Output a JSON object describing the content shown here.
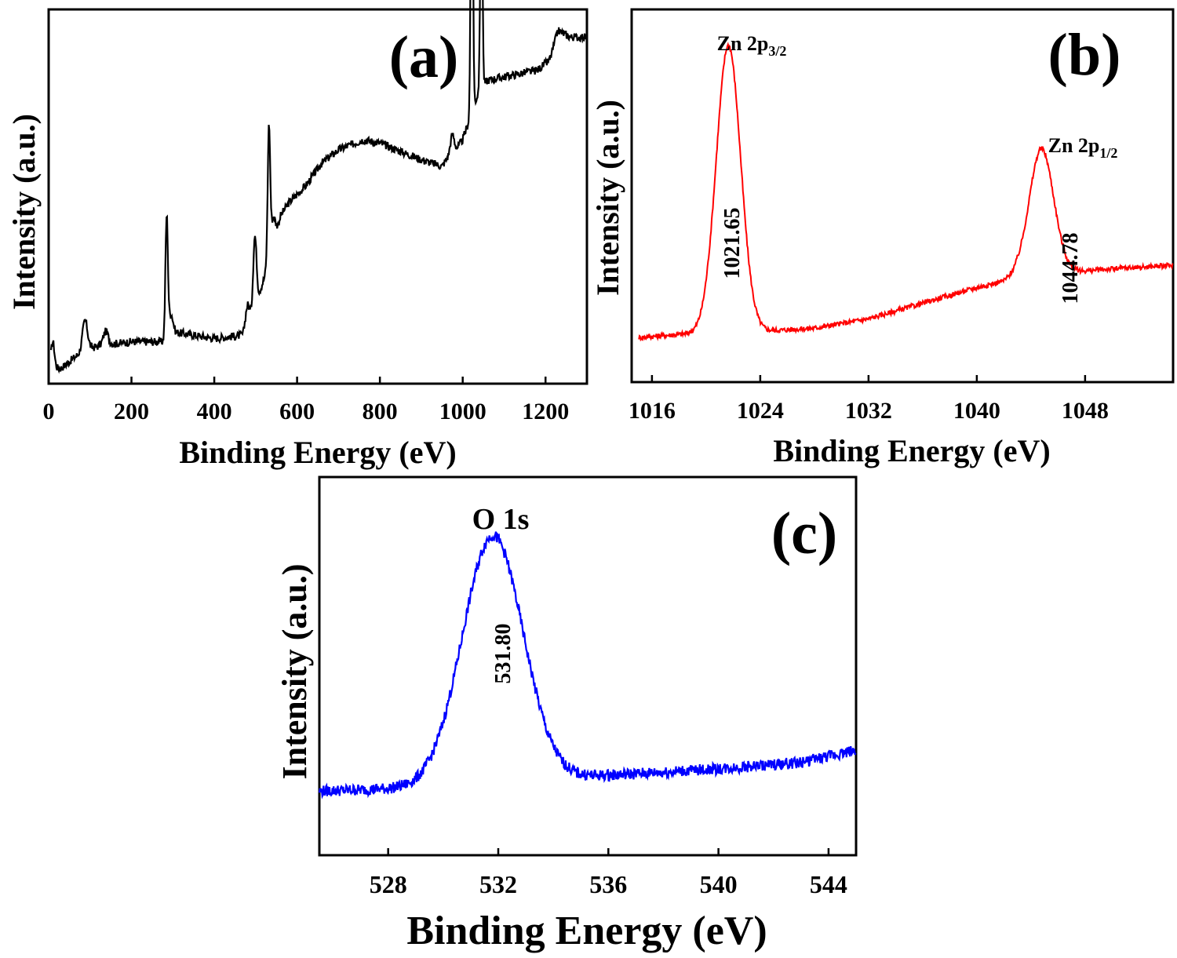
{
  "chart_data": [
    {
      "id": "a",
      "type": "line",
      "panel_label": "(a)",
      "xlabel": "Binding Energy (eV)",
      "ylabel": "Intensity (a.u.)",
      "xlim": [
        0,
        1300
      ],
      "ylim": [
        0,
        100
      ],
      "xticks": [
        0,
        200,
        400,
        600,
        800,
        1000,
        1200
      ],
      "color": "#000000",
      "baseline_points": [
        [
          5,
          3
        ],
        [
          30,
          3
        ],
        [
          60,
          6
        ],
        [
          80,
          8
        ],
        [
          100,
          9
        ],
        [
          130,
          10
        ],
        [
          200,
          11
        ],
        [
          280,
          11
        ],
        [
          300,
          14
        ],
        [
          400,
          12
        ],
        [
          470,
          13
        ],
        [
          490,
          19
        ],
        [
          520,
          30
        ],
        [
          560,
          49
        ],
        [
          580,
          53
        ],
        [
          620,
          58
        ],
        [
          660,
          65
        ],
        [
          700,
          69
        ],
        [
          760,
          72
        ],
        [
          800,
          71
        ],
        [
          860,
          68
        ],
        [
          900,
          66
        ],
        [
          950,
          64
        ],
        [
          960,
          66
        ],
        [
          980,
          68
        ],
        [
          1000,
          72
        ],
        [
          1040,
          87
        ],
        [
          1060,
          90
        ],
        [
          1100,
          91
        ],
        [
          1180,
          93
        ],
        [
          1210,
          96
        ],
        [
          1230,
          105
        ],
        [
          1260,
          103
        ],
        [
          1300,
          103
        ]
      ],
      "peaks": [
        [
          10,
          8,
          4
        ],
        [
          88,
          9,
          6
        ],
        [
          138,
          4,
          6
        ],
        [
          285,
          37,
          3
        ],
        [
          295,
          6,
          5
        ],
        [
          480,
          6,
          5
        ],
        [
          498,
          21,
          4
        ],
        [
          532,
          40,
          3
        ],
        [
          542,
          8,
          5
        ],
        [
          975,
          6,
          5
        ],
        [
          1022,
          110,
          2.5
        ],
        [
          1045,
          73,
          2.5
        ]
      ],
      "noise": 1.2,
      "annotations": []
    },
    {
      "id": "b",
      "type": "line",
      "panel_label": "(b)",
      "xlabel": "Binding Energy (eV)",
      "ylabel": "Intensity (a.u.)",
      "xlim": [
        1014.5,
        1054.5
      ],
      "ylim": [
        0,
        100
      ],
      "xticks": [
        1016,
        1024,
        1032,
        1040,
        1048
      ],
      "color": "#ff0000",
      "baseline_points": [
        [
          1015,
          10
        ],
        [
          1018,
          11
        ],
        [
          1024,
          12
        ],
        [
          1028,
          13
        ],
        [
          1032,
          16
        ],
        [
          1036,
          21
        ],
        [
          1040,
          26
        ],
        [
          1042,
          28
        ],
        [
          1043,
          30
        ],
        [
          1047,
          31
        ],
        [
          1050,
          32
        ],
        [
          1054,
          33
        ]
      ],
      "peaks": [
        [
          1021.65,
          92,
          0.9
        ],
        [
          1044.78,
          40,
          0.9
        ]
      ],
      "noise": 0.8,
      "annotations": [
        {
          "peak": "Zn 2p",
          "sub": "3/2",
          "value": "1021.65",
          "x": 1021.65
        },
        {
          "peak": "Zn 2p",
          "sub": "1/2",
          "value": "1044.78",
          "x": 1044.78
        }
      ]
    },
    {
      "id": "c",
      "type": "line",
      "panel_label": "(c)",
      "xlabel": "Binding Energy (eV)",
      "ylabel": "Intensity (a.u.)",
      "xlim": [
        525.5,
        545
      ],
      "ylim": [
        0,
        100
      ],
      "xticks": [
        528,
        532,
        536,
        540,
        544
      ],
      "color": "#0000ff",
      "baseline_points": [
        [
          525.5,
          14
        ],
        [
          529,
          15
        ],
        [
          533,
          17
        ],
        [
          534.5,
          18
        ],
        [
          536,
          19
        ],
        [
          540,
          21
        ],
        [
          543,
          23
        ],
        [
          545,
          27
        ]
      ],
      "peaks": [
        [
          531.8,
          78,
          1.1
        ]
      ],
      "noise": 1.8,
      "annotations": [
        {
          "peak": "O 1s",
          "sub": "",
          "value": "531.80",
          "x": 531.8
        }
      ]
    }
  ]
}
